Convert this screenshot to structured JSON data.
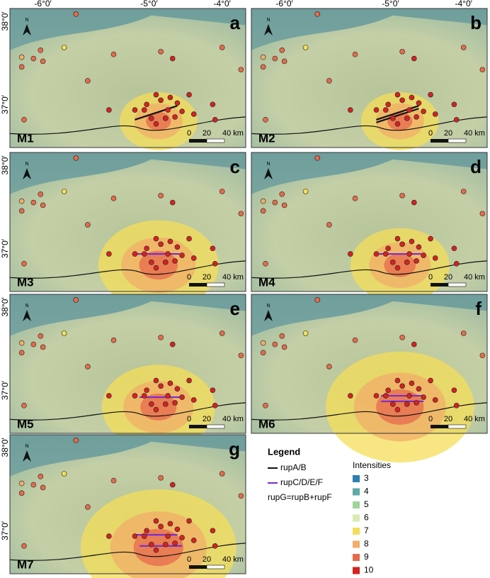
{
  "axes": {
    "lon_labels": [
      "-6°0′",
      "-5°0′",
      "-4°0′"
    ],
    "lat_labels": [
      "38°0′",
      "37°0′"
    ]
  },
  "north": "N",
  "scale_bar": [
    "0",
    "20",
    "40 km"
  ],
  "panels": [
    {
      "letter": "a",
      "model": "M1"
    },
    {
      "letter": "b",
      "model": "M2"
    },
    {
      "letter": "c",
      "model": "M3"
    },
    {
      "letter": "d",
      "model": "M4"
    },
    {
      "letter": "e",
      "model": "M5"
    },
    {
      "letter": "f",
      "model": "M6"
    },
    {
      "letter": "g",
      "model": "M7"
    }
  ],
  "legend": {
    "title": "Legend",
    "lines": [
      {
        "label": "rupA/B",
        "color": "#111111"
      },
      {
        "label": "rupC/D/E/F",
        "color": "#7a2bd0"
      }
    ],
    "note": "rupG=rupB+rupF",
    "intensity_title": "Intensities",
    "intensities": [
      {
        "label": "3",
        "color": "#2c7fb0"
      },
      {
        "label": "4",
        "color": "#5fa9a6"
      },
      {
        "label": "5",
        "color": "#9fd49c"
      },
      {
        "label": "6",
        "color": "#d9ebb2"
      },
      {
        "label": "7",
        "color": "#f4de58"
      },
      {
        "label": "8",
        "color": "#f2ad6a"
      },
      {
        "label": "9",
        "color": "#e76a4c"
      },
      {
        "label": "10",
        "color": "#d42222"
      }
    ]
  }
}
